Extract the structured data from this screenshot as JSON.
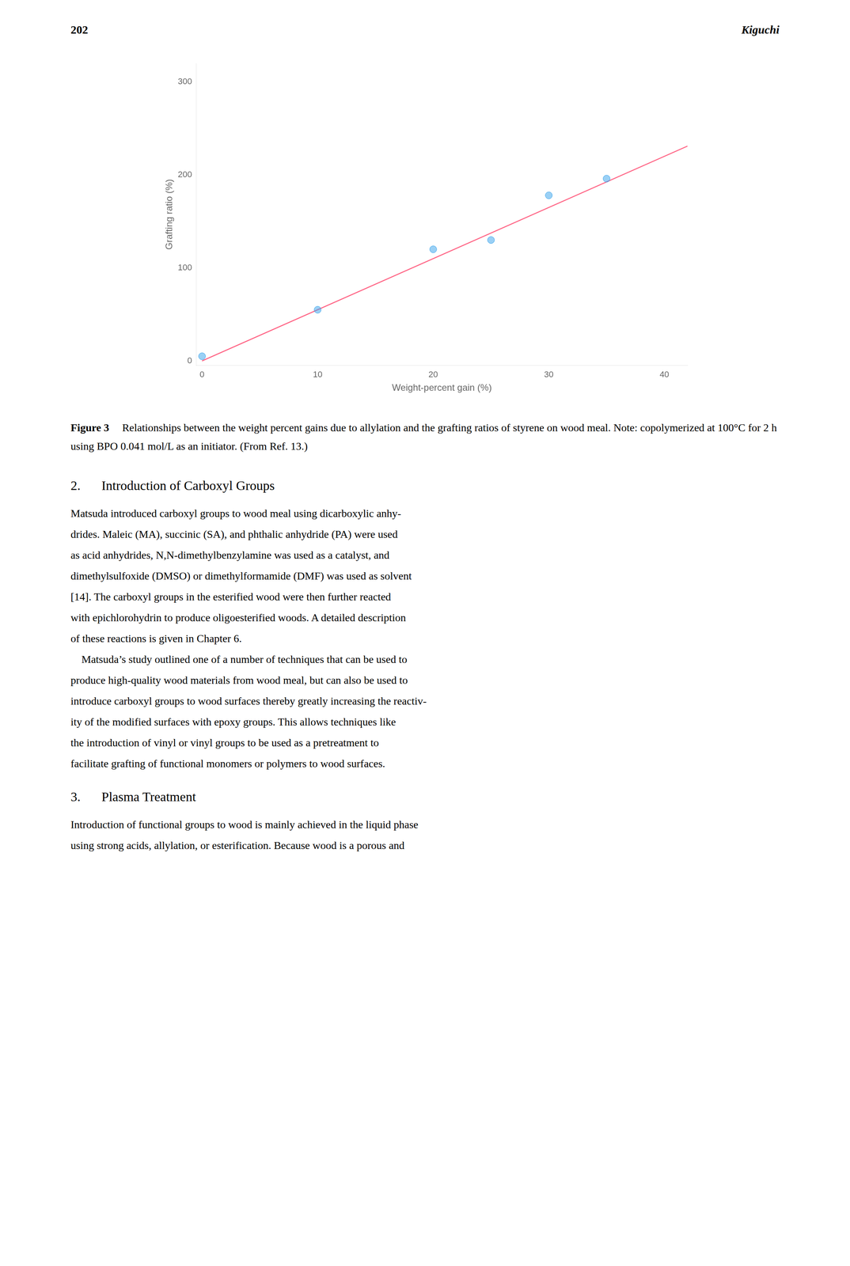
{
  "chart_data": {
    "type": "scatter",
    "title": "Figure 3",
    "subtitle": "Relationships between the weight percent gains due to allylation and the grafting ratios of styrene on wood meal. Note: copolymerized at 100°C for 2 h using BPO 0.041 mol/L as an initiator. (From Ref. 13.)",
    "xlabel": "Weight-percent gain (%)",
    "ylabel": "Grafting ratio (%)",
    "xlim": [
      -0.5,
      42
    ],
    "ylim": [
      -5,
      320
    ],
    "xticks": [
      0,
      10,
      20,
      30,
      40
    ],
    "yticks": [
      0,
      100,
      200,
      300
    ],
    "grid": false,
    "series": [
      {
        "type": "scatter",
        "marker": "circle",
        "x": [
          0,
          10,
          20,
          25,
          30,
          35
        ],
        "values": [
          5,
          55,
          120,
          130,
          178,
          196
        ]
      },
      {
        "type": "line",
        "marker": "none",
        "line_style": "solid",
        "x": [
          0,
          42
        ],
        "values": [
          0,
          231
        ]
      }
    ],
    "annotations": [
      "202",
      "Kiguchi",
      "2.",
      "Introduction of Carboxyl Groups",
      "Matsuda introduced carboxyl groups to wood meal using dicarboxylic anhy-",
      "drides. Maleic (MA), succinic (SA), and phthalic anhydride (PA) were used",
      "as acid anhydrides, N,N-dimethylbenzylamine was used as a catalyst, and",
      "dimethylsulfoxide (DMSO) or dimethylformamide (DMF) was used as solvent",
      "[14]. The carboxyl groups in the esterified wood were then further reacted",
      "with epichlorohydrin to produce oligoesterified woods. A detailed description",
      "of these reactions is given in Chapter 6.",
      "    Matsuda’s study outlined one of a number of techniques that can be used to",
      "produce high-quality wood materials from wood meal, but can also be used to",
      "introduce carboxyl groups to wood surfaces thereby greatly increasing the reactiv-",
      "ity of the modified surfaces with epoxy groups. This allows techniques like",
      "the introduction of vinyl or vinyl groups to be used as a pretreatment to",
      "facilitate grafting of functional monomers or polymers to wood surfaces.",
      "3.",
      "Plasma Treatment",
      "Introduction of functional groups to wood is mainly achieved in the liquid phase",
      "using strong acids, allylation, or esterification. Because wood is a porous and"
    ]
  }
}
